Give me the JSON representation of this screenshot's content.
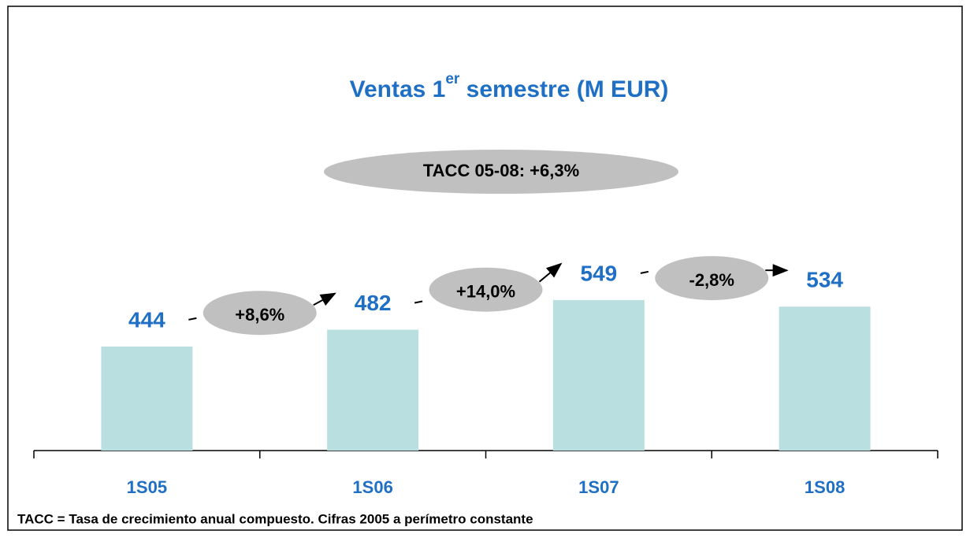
{
  "chart_data": {
    "type": "bar",
    "title": [
      "Ventas 1",
      "er",
      " semestre (M EUR)"
    ],
    "categories": [
      "1S05",
      "1S06",
      "1S07",
      "1S08"
    ],
    "values": [
      444,
      482,
      549,
      534
    ],
    "color": "#b9dfe0",
    "label_color": "#1f6fc5",
    "ylim": [
      209,
      1150
    ],
    "growth": [
      "+8,6%",
      "+14,0%",
      "-2,8%"
    ],
    "cagr": "TACC 05-08: +6,3%",
    "footnote": "TACC = Tasa de crecimiento anual compuesto. Cifras 2005 a perímetro constante"
  }
}
